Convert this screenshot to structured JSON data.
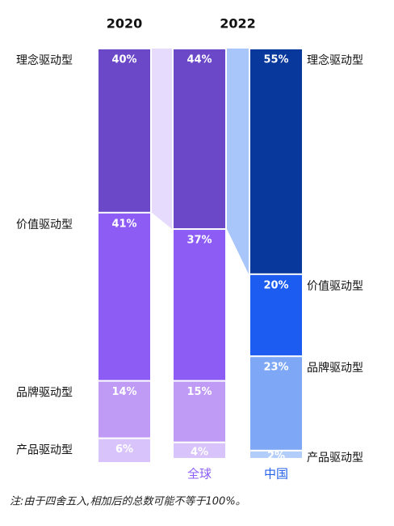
{
  "chart_data": {
    "type": "stacked_bar",
    "groups": [
      {
        "label": "2020"
      },
      {
        "label": "2022"
      }
    ],
    "categories": [
      null,
      "全球",
      "中国"
    ],
    "category_colors": [
      "#8b5cf6",
      "#8b5cf6",
      "#2563eb"
    ],
    "series": [
      {
        "name": "理念驱动型",
        "colors": [
          "#6b48c8",
          "#6b48c8",
          "#08389c"
        ],
        "values": [
          40,
          44,
          55
        ],
        "value_labels": [
          "40%",
          "44%",
          "55%"
        ]
      },
      {
        "name": "价值驱动型",
        "colors": [
          "#8c5cf5",
          "#8c5cf5",
          "#1d5cf0"
        ],
        "values": [
          41,
          37,
          20
        ],
        "value_labels": [
          "41%",
          "37%",
          "20%"
        ]
      },
      {
        "name": "品牌驱动型",
        "colors": [
          "#c09bf6",
          "#c09bf6",
          "#7ea8f6"
        ],
        "values": [
          14,
          15,
          23
        ],
        "value_labels": [
          "14%",
          "15%",
          "23%"
        ]
      },
      {
        "name": "产品驱动型",
        "colors": [
          "#d8c3fa",
          "#d8c3fa",
          "#b3cdfb"
        ],
        "values": [
          6,
          4,
          2
        ],
        "value_labels": [
          "6%",
          "4%",
          "2%"
        ]
      }
    ],
    "connector_colors": [
      "#e6dafd",
      "#a9c6fb"
    ],
    "note": "注:由于四舍五入,相加后的总数可能不等于100%。"
  }
}
